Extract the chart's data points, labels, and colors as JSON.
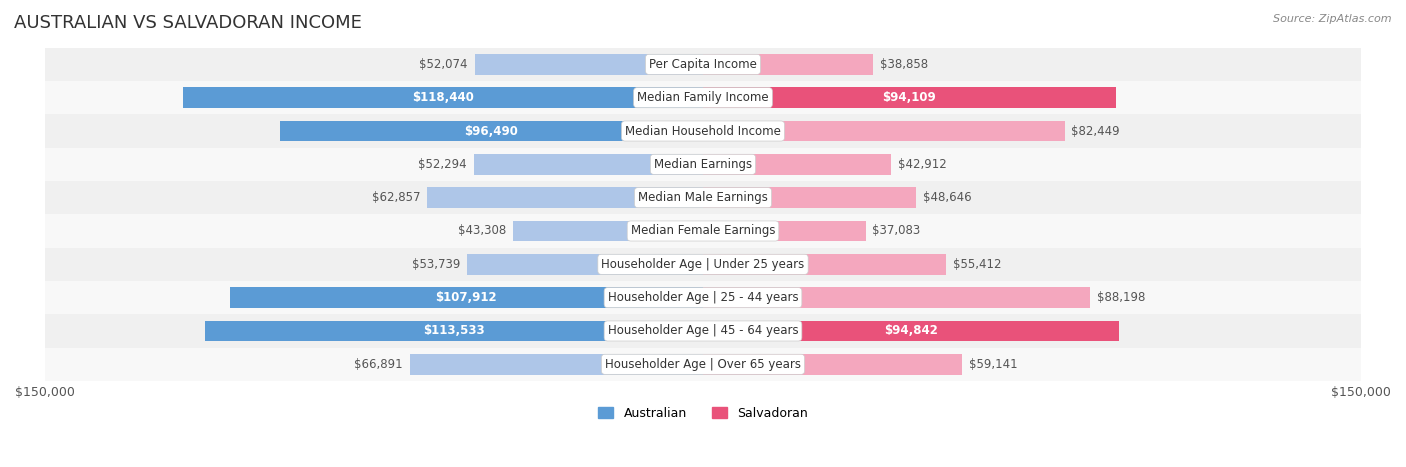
{
  "title": "AUSTRALIAN VS SALVADORAN INCOME",
  "source": "Source: ZipAtlas.com",
  "categories": [
    "Per Capita Income",
    "Median Family Income",
    "Median Household Income",
    "Median Earnings",
    "Median Male Earnings",
    "Median Female Earnings",
    "Householder Age | Under 25 years",
    "Householder Age | 25 - 44 years",
    "Householder Age | 45 - 64 years",
    "Householder Age | Over 65 years"
  ],
  "australian_values": [
    52074,
    118440,
    96490,
    52294,
    62857,
    43308,
    53739,
    107912,
    113533,
    66891
  ],
  "salvadoran_values": [
    38858,
    94109,
    82449,
    42912,
    48646,
    37083,
    55412,
    88198,
    94842,
    59141
  ],
  "australian_labels": [
    "$52,074",
    "$118,440",
    "$96,490",
    "$52,294",
    "$62,857",
    "$43,308",
    "$53,739",
    "$107,912",
    "$113,533",
    "$66,891"
  ],
  "salvadoran_labels": [
    "$38,858",
    "$94,109",
    "$82,449",
    "$42,912",
    "$48,646",
    "$37,083",
    "$55,412",
    "$88,198",
    "$94,842",
    "$59,141"
  ],
  "max_value": 150000,
  "australian_color_light": "#aec6e8",
  "australian_color_strong": "#5b9bd5",
  "salvadoran_color_light": "#f4a7be",
  "salvadoran_color_strong": "#e9527a",
  "label_threshold": 90000,
  "bg_color": "#ffffff",
  "row_bg_light": "#f5f5f5",
  "row_bg_dark": "#ebebeb",
  "title_fontsize": 13,
  "label_fontsize": 8.5,
  "category_fontsize": 8.5
}
